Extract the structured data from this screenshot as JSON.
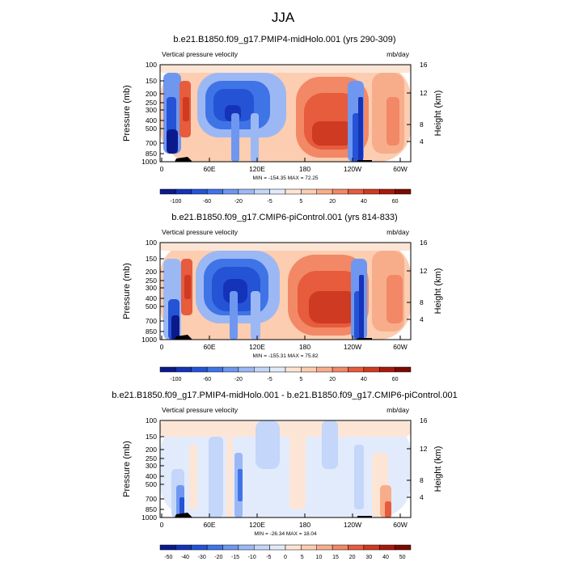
{
  "figure": {
    "title": "JJA"
  },
  "chart_data": [
    {
      "type": "heatmap",
      "title": "b.e21.B1850.f09_g17.PMIP4-midHolo.001 (yrs 290-309)",
      "left_label": "Vertical pressure velocity",
      "right_label": "mb/day",
      "ylabel": "Pressure (mb)",
      "ylabel_right": "Height (km)",
      "x_ticks": [
        "0",
        "60E",
        "120E",
        "180",
        "120W",
        "60W"
      ],
      "y_ticks": [
        "100",
        "150",
        "200",
        "250",
        "300",
        "400",
        "500",
        "700",
        "850",
        "1000"
      ],
      "y_ticks_right": [
        "16",
        "12",
        "8",
        "4"
      ],
      "stats": "MIN = -154.35  MAX =  72.25",
      "colorbar_labels": [
        "-100",
        "-60",
        "-20",
        "-5",
        "5",
        "20",
        "40",
        "60"
      ],
      "colorbar_colors": [
        "#0a1a8c",
        "#1533b8",
        "#2453d6",
        "#3f74e6",
        "#6f97ef",
        "#9cb8f4",
        "#c4d6f9",
        "#e2ebfc",
        "#fde5d6",
        "#fccdb0",
        "#f8ad8a",
        "#f28866",
        "#e65c3d",
        "#cf3a22",
        "#a8190c",
        "#7a0a03"
      ]
    },
    {
      "type": "heatmap",
      "title": "b.e21.B1850.f09_g17.CMIP6-piControl.001 (yrs 814-833)",
      "left_label": "Vertical pressure velocity",
      "right_label": "mb/day",
      "ylabel": "Pressure (mb)",
      "ylabel_right": "Height (km)",
      "x_ticks": [
        "0",
        "60E",
        "120E",
        "180",
        "120W",
        "60W"
      ],
      "y_ticks": [
        "100",
        "150",
        "200",
        "250",
        "300",
        "400",
        "500",
        "700",
        "850",
        "1000"
      ],
      "y_ticks_right": [
        "16",
        "12",
        "8",
        "4"
      ],
      "stats": "MIN = -155.31  MAX =  75.82",
      "colorbar_labels": [
        "-100",
        "-60",
        "-20",
        "-5",
        "5",
        "20",
        "40",
        "60"
      ],
      "colorbar_colors": [
        "#0a1a8c",
        "#1533b8",
        "#2453d6",
        "#3f74e6",
        "#6f97ef",
        "#9cb8f4",
        "#c4d6f9",
        "#e2ebfc",
        "#fde5d6",
        "#fccdb0",
        "#f8ad8a",
        "#f28866",
        "#e65c3d",
        "#cf3a22",
        "#a8190c",
        "#7a0a03"
      ]
    },
    {
      "type": "heatmap",
      "title": "b.e21.B1850.f09_g17.PMIP4-midHolo.001 - b.e21.B1850.f09_g17.CMIP6-piControl.001",
      "left_label": "Vertical pressure velocity",
      "right_label": "mb/day",
      "ylabel": "Pressure (mb)",
      "ylabel_right": "Height (km)",
      "x_ticks": [
        "0",
        "60E",
        "120E",
        "180",
        "120W",
        "60W"
      ],
      "y_ticks": [
        "100",
        "150",
        "200",
        "250",
        "300",
        "400",
        "500",
        "700",
        "850",
        "1000"
      ],
      "y_ticks_right": [
        "16",
        "12",
        "8",
        "4"
      ],
      "stats": "MIN = -26.34  MAX =  18.04",
      "colorbar_labels": [
        "-50",
        "-40",
        "-30",
        "-20",
        "-15",
        "-10",
        "-5",
        "0",
        "5",
        "10",
        "15",
        "20",
        "30",
        "40",
        "50"
      ],
      "colorbar_colors": [
        "#0a1a8c",
        "#1533b8",
        "#2453d6",
        "#3f74e6",
        "#6f97ef",
        "#9cb8f4",
        "#c4d6f9",
        "#e2ebfc",
        "#fde5d6",
        "#fccdb0",
        "#f8ad8a",
        "#f28866",
        "#e65c3d",
        "#cf3a22",
        "#a8190c",
        "#7a0a03"
      ]
    }
  ]
}
